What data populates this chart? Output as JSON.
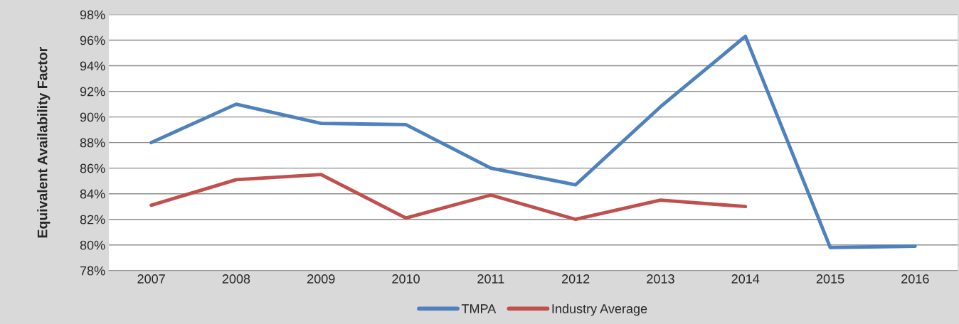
{
  "chart_data": {
    "type": "line",
    "ylabel": "Equivalent Availability Factor",
    "categories": [
      "2007",
      "2008",
      "2009",
      "2010",
      "2011",
      "2012",
      "2013",
      "2014",
      "2015",
      "2016"
    ],
    "series": [
      {
        "name": "TMPA",
        "color": "#4f81bd",
        "values": [
          88.0,
          91.0,
          89.5,
          89.4,
          86.0,
          84.7,
          90.8,
          96.3,
          79.8,
          79.9
        ]
      },
      {
        "name": "Industry Average",
        "color": "#c0504d",
        "values": [
          83.1,
          85.1,
          85.5,
          82.1,
          83.9,
          82.0,
          83.5,
          83.0,
          null,
          null
        ]
      }
    ],
    "ylim": [
      78,
      98
    ],
    "yticks": [
      {
        "value": 78,
        "label": "78%"
      },
      {
        "value": 80,
        "label": "80%"
      },
      {
        "value": 82,
        "label": "82%"
      },
      {
        "value": 84,
        "label": "84%"
      },
      {
        "value": 86,
        "label": "86%"
      },
      {
        "value": 88,
        "label": "88%"
      },
      {
        "value": 90,
        "label": "90%"
      },
      {
        "value": 92,
        "label": "92%"
      },
      {
        "value": 94,
        "label": "94%"
      },
      {
        "value": 96,
        "label": "96%"
      },
      {
        "value": 98,
        "label": "98%"
      }
    ],
    "grid": "y",
    "legend": "bottom",
    "marker": "none",
    "line_style": "solid"
  }
}
